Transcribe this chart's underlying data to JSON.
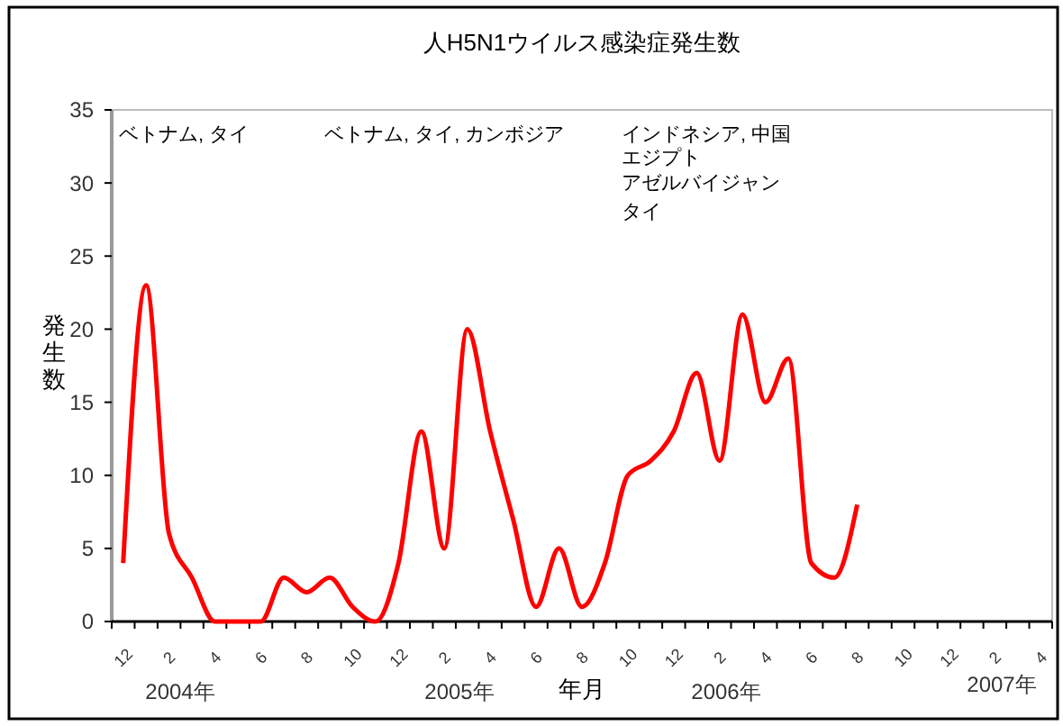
{
  "chart_data": {
    "type": "line",
    "title": "人H5N1ウイルス感染症発生数",
    "xlabel": "年月",
    "ylabel": "発生数",
    "categories": [
      "12",
      null,
      "2",
      null,
      "4",
      null,
      "6",
      null,
      "8",
      null,
      "10",
      null,
      "12",
      null,
      "2",
      null,
      "4",
      null,
      "6",
      null,
      "8",
      null,
      "10",
      null,
      "12",
      null,
      "2",
      null,
      "4",
      null,
      "6",
      null,
      "8",
      null,
      "10",
      null,
      "12",
      null,
      "2",
      null,
      "4"
    ],
    "series": [
      {
        "color": "#ff0000",
        "values": [
          4,
          23,
          6,
          3,
          0,
          0,
          0,
          3,
          2,
          3,
          1,
          0,
          4,
          13,
          5,
          20,
          13,
          7,
          1,
          5,
          1,
          4,
          10,
          11,
          13,
          17,
          11,
          21,
          15,
          18,
          4,
          3,
          8,
          null,
          null,
          null,
          null,
          null,
          null,
          null,
          null
        ]
      }
    ],
    "ylim": [
      0,
      35
    ],
    "yticks": [
      0,
      5,
      10,
      15,
      20,
      25,
      30,
      35
    ],
    "grid": false,
    "marker": "none",
    "line_style": "solid",
    "annotations": [
      "ベトナム, タイ",
      "ベトナム, タイ, カンボジア",
      "インドネシア, 中国",
      "エジプト",
      "アゼルバイジャン",
      "タイ",
      "2004年",
      "2005年",
      "2006年",
      "2007年"
    ]
  }
}
